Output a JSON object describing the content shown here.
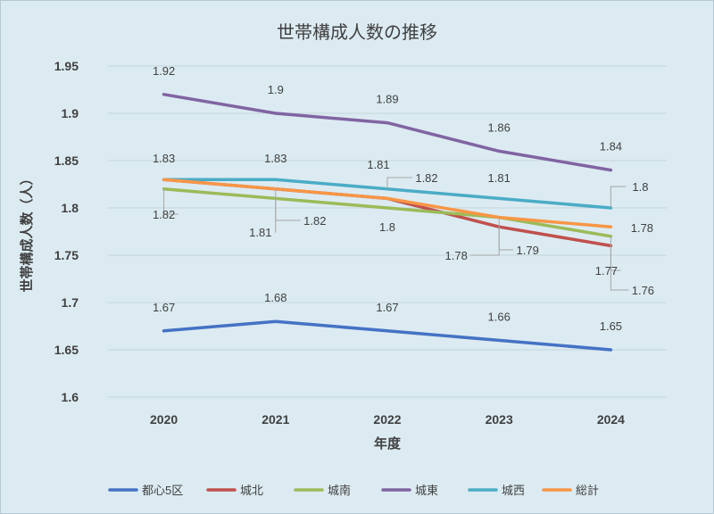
{
  "chart_data": {
    "type": "line",
    "title": "世帯構成人数の推移",
    "xlabel": "年度",
    "ylabel": "世帯構成人数（人）",
    "categories": [
      "2020",
      "2021",
      "2022",
      "2023",
      "2024"
    ],
    "ylim": [
      1.6,
      1.95
    ],
    "yticks": [
      "1.6",
      "1.65",
      "1.7",
      "1.75",
      "1.8",
      "1.85",
      "1.9",
      "1.95"
    ],
    "grid": true,
    "legend_position": "bottom",
    "series": [
      {
        "name": "都心5区",
        "color": "#4472c4",
        "values": [
          1.67,
          1.68,
          1.67,
          1.66,
          1.65
        ],
        "labels": [
          "1.67",
          "1.68",
          "1.67",
          "1.66",
          "1.65"
        ]
      },
      {
        "name": "城北",
        "color": "#c0504d",
        "values": [
          1.83,
          1.82,
          1.81,
          1.78,
          1.76
        ],
        "labels": [
          "1.83",
          "1.82",
          "1.81",
          "1.78",
          "1.76"
        ]
      },
      {
        "name": "城南",
        "color": "#9bbb59",
        "values": [
          1.82,
          1.81,
          1.8,
          1.79,
          1.77
        ],
        "labels": [
          "1.82",
          "1.81",
          "1.8",
          "1.79",
          "1.77"
        ]
      },
      {
        "name": "城東",
        "color": "#8064a2",
        "values": [
          1.92,
          1.9,
          1.89,
          1.86,
          1.84
        ],
        "labels": [
          "1.92",
          "1.9",
          "1.89",
          "1.86",
          "1.84"
        ]
      },
      {
        "name": "城西",
        "color": "#4bacc6",
        "values": [
          1.83,
          1.83,
          1.82,
          1.81,
          1.8
        ],
        "labels": [
          "1.83",
          "1.83",
          "1.82",
          "1.81",
          "1.8"
        ]
      },
      {
        "name": "総計",
        "color": "#f79646",
        "values": [
          1.83,
          1.82,
          1.81,
          1.79,
          1.78
        ],
        "labels": [
          "1.83",
          "1.82",
          "1.81",
          "1.79",
          "1.78"
        ]
      }
    ]
  }
}
